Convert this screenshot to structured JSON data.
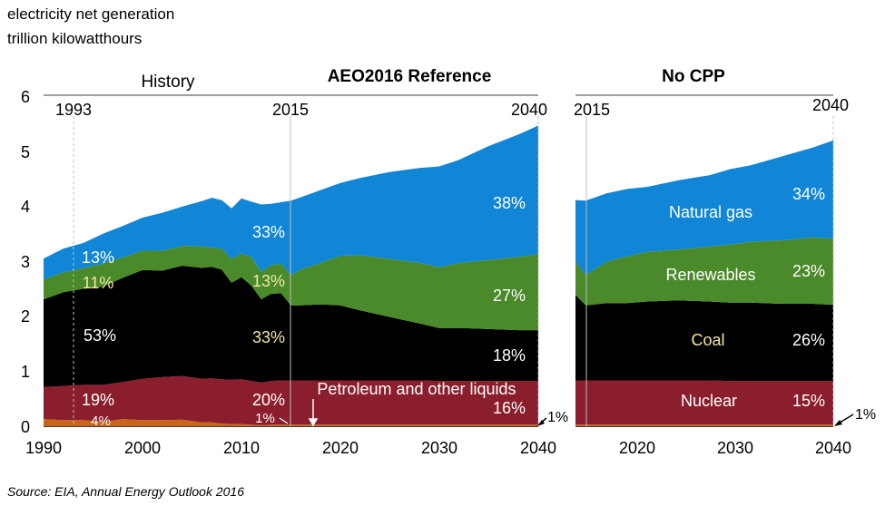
{
  "header": {
    "line1": "electricity net generation",
    "line2": "trillion kilowatthours"
  },
  "source": "Source:  EIA, Annual Energy Outlook 2016",
  "colors": {
    "natural_gas": "#1286d6",
    "renewables": "#4a8a2a",
    "coal": "#000000",
    "nuclear": "#8b1e2c",
    "petroleum": "#c8651b",
    "vline": "#bfbfbf",
    "topline": "#808080"
  },
  "chart_data": [
    {
      "type": "area",
      "panel": "left",
      "section_titles": [
        "History",
        "AEO2016 Reference"
      ],
      "year_markers": [
        "1993",
        "2015",
        "2040"
      ],
      "ylim": [
        0,
        6
      ],
      "y_ticks": [
        "0",
        "1",
        "2",
        "3",
        "4",
        "5",
        "6"
      ],
      "xlim": [
        1990,
        2040
      ],
      "x_ticks": [
        "1990",
        "2000",
        "2010",
        "2020",
        "2030",
        "2040"
      ],
      "grid": false,
      "x": [
        1990,
        1992,
        1994,
        1996,
        1998,
        2000,
        2002,
        2004,
        2006,
        2007,
        2008,
        2009,
        2010,
        2011,
        2012,
        2013,
        2014,
        2015,
        2016,
        2018,
        2020,
        2022,
        2025,
        2028,
        2030,
        2032,
        2035,
        2038,
        2040
      ],
      "series": [
        {
          "name": "Petroleum and other liquids",
          "color_key": "petroleum",
          "values": [
            0.13,
            0.11,
            0.11,
            0.08,
            0.13,
            0.11,
            0.11,
            0.12,
            0.07,
            0.07,
            0.05,
            0.04,
            0.04,
            0.03,
            0.02,
            0.03,
            0.03,
            0.03,
            0.03,
            0.03,
            0.03,
            0.03,
            0.03,
            0.03,
            0.03,
            0.03,
            0.03,
            0.03,
            0.03
          ]
        },
        {
          "name": "Nuclear",
          "values": [
            0.58,
            0.62,
            0.64,
            0.67,
            0.67,
            0.75,
            0.78,
            0.79,
            0.79,
            0.8,
            0.8,
            0.8,
            0.81,
            0.79,
            0.77,
            0.79,
            0.8,
            0.8,
            0.8,
            0.8,
            0.8,
            0.8,
            0.8,
            0.8,
            0.79,
            0.79,
            0.79,
            0.79,
            0.79
          ]
        },
        {
          "name": "Coal",
          "values": [
            1.59,
            1.7,
            1.74,
            1.78,
            1.89,
            1.97,
            1.93,
            2.0,
            2.01,
            2.02,
            1.99,
            1.76,
            1.85,
            1.73,
            1.51,
            1.58,
            1.58,
            1.36,
            1.36,
            1.38,
            1.36,
            1.27,
            1.15,
            1.03,
            0.96,
            0.96,
            0.94,
            0.92,
            0.92
          ]
        },
        {
          "name": "Renewables",
          "values": [
            0.36,
            0.36,
            0.37,
            0.42,
            0.37,
            0.35,
            0.36,
            0.36,
            0.39,
            0.35,
            0.38,
            0.43,
            0.43,
            0.52,
            0.5,
            0.52,
            0.54,
            0.55,
            0.65,
            0.75,
            0.9,
            1.0,
            1.05,
            1.1,
            1.1,
            1.18,
            1.25,
            1.33,
            1.38
          ]
        },
        {
          "name": "Natural gas",
          "values": [
            0.38,
            0.43,
            0.46,
            0.54,
            0.57,
            0.6,
            0.69,
            0.71,
            0.82,
            0.9,
            0.88,
            0.92,
            1.0,
            1.0,
            1.22,
            1.11,
            1.11,
            1.35,
            1.31,
            1.32,
            1.32,
            1.4,
            1.58,
            1.72,
            1.83,
            1.87,
            2.07,
            2.22,
            2.33
          ]
        }
      ],
      "labels": {
        "gas_1990": "13%",
        "gas_2015": "33%",
        "gas_2040": "38%",
        "ren_1990": "11%",
        "ren_2015": "13%",
        "ren_2040": "27%",
        "coal_1990": "53%",
        "coal_2015": "33%",
        "coal_2040": "18%",
        "nuc_1990": "19%",
        "nuc_2015": "20%",
        "nuc_2040": "16%",
        "pet_1990": "4%",
        "pet_2015": "1%",
        "pet_2040": "1%",
        "petroleum_label": "Petroleum and other liquids"
      }
    },
    {
      "type": "area",
      "panel": "right",
      "section_titles": [
        "No CPP"
      ],
      "year_markers": [
        "2015",
        "2040"
      ],
      "ylim": [
        0,
        6
      ],
      "xlim": [
        2015,
        2040
      ],
      "x_ticks": [
        "2020",
        "2030",
        "2040"
      ],
      "grid": false,
      "x": [
        2015,
        2016,
        2018,
        2020,
        2022,
        2025,
        2028,
        2030,
        2032,
        2035,
        2038,
        2040
      ],
      "series": [
        {
          "name": "Petroleum and other liquids",
          "color_key": "petroleum",
          "values": [
            0.03,
            0.03,
            0.03,
            0.03,
            0.03,
            0.03,
            0.03,
            0.03,
            0.03,
            0.03,
            0.03,
            0.03
          ]
        },
        {
          "name": "Nuclear",
          "values": [
            0.8,
            0.8,
            0.8,
            0.8,
            0.8,
            0.8,
            0.8,
            0.79,
            0.79,
            0.79,
            0.79,
            0.79
          ]
        },
        {
          "name": "Coal",
          "values": [
            1.55,
            1.36,
            1.4,
            1.4,
            1.43,
            1.45,
            1.43,
            1.42,
            1.42,
            1.4,
            1.4,
            1.38
          ]
        },
        {
          "name": "Renewables",
          "values": [
            0.6,
            0.55,
            0.75,
            0.85,
            0.9,
            0.92,
            1.0,
            1.05,
            1.1,
            1.15,
            1.2,
            1.2
          ]
        },
        {
          "name": "Natural gas",
          "values": [
            1.12,
            1.35,
            1.24,
            1.22,
            1.18,
            1.26,
            1.29,
            1.37,
            1.39,
            1.52,
            1.63,
            1.78
          ]
        }
      ],
      "labels": {
        "gas_name": "Natural gas",
        "gas_2040": "34%",
        "ren_name": "Renewables",
        "ren_2040": "23%",
        "coal_name": "Coal",
        "coal_2040": "26%",
        "nuc_name": "Nuclear",
        "nuc_2040": "15%",
        "pet_2040": "1%"
      }
    }
  ]
}
